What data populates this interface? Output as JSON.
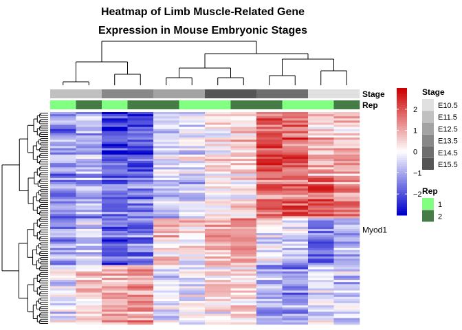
{
  "chart_data": {
    "type": "heatmap",
    "title_lines": [
      "Heatmap of Limb Muscle-Related Gene",
      "Expression in Mouse Embryonic Stages"
    ],
    "n_rows": 100,
    "n_cols": 12,
    "row_labels_shown": [
      {
        "row": 55,
        "label": "Myod1"
      }
    ],
    "column_annotations": [
      {
        "name": "Stage",
        "values": [
          "E11.5",
          "E11.5",
          "E13.5",
          "E13.5",
          "E12.5",
          "E12.5",
          "E15.5",
          "E15.5",
          "E14.5",
          "E14.5",
          "E10.5",
          "E10.5"
        ]
      },
      {
        "name": "Rep",
        "values": [
          "1",
          "2",
          "1",
          "2",
          "2",
          "1",
          "1",
          "2",
          "2",
          "1",
          "1",
          "2"
        ]
      }
    ],
    "color_scale": {
      "min": -3,
      "max": 3,
      "low_color": "#0000cc",
      "mid_color": "#ffffff",
      "high_color": "#cc0000",
      "ticks": [
        2,
        1,
        0,
        -1,
        -2
      ]
    },
    "legends": {
      "stage": {
        "title": "Stage",
        "entries": [
          {
            "label": "E10.5",
            "color": "#e0e0e0"
          },
          {
            "label": "E11.5",
            "color": "#c0c0c0"
          },
          {
            "label": "E12.5",
            "color": "#a3a3a3"
          },
          {
            "label": "E13.5",
            "color": "#888888"
          },
          {
            "label": "E14.5",
            "color": "#6e6e6e"
          },
          {
            "label": "E15.5",
            "color": "#555555"
          }
        ]
      },
      "rep": {
        "title": "Rep",
        "entries": [
          {
            "label": "1",
            "color": "#80ff80"
          },
          {
            "label": "2",
            "color": "#457b45"
          }
        ]
      }
    }
  }
}
